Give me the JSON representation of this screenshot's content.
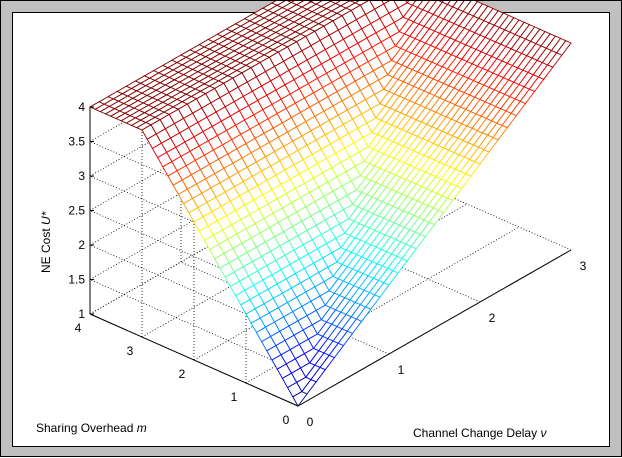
{
  "chart_data": {
    "type": "surface",
    "title": "",
    "xlabel": "Channel Change Delay",
    "xlabel_symbol": "ν",
    "ylabel": "Sharing Overhead",
    "ylabel_symbol": "m",
    "zlabel": "NE Cost",
    "zlabel_symbol": "U*",
    "xlim": [
      0,
      3
    ],
    "ylim": [
      0,
      4
    ],
    "zlim": [
      1,
      4
    ],
    "x_ticks": [
      0,
      1,
      2,
      3
    ],
    "y_ticks": [
      0,
      1,
      2,
      3,
      4
    ],
    "z_ticks": [
      1,
      1.5,
      2,
      2.5,
      3,
      3.5,
      4
    ],
    "x_tick_labels": [
      "0",
      "1",
      "2",
      "3"
    ],
    "y_tick_labels": [
      "0",
      "1",
      "2",
      "3",
      "4"
    ],
    "z_tick_labels": [
      "1",
      "1.5",
      "2",
      "2.5",
      "3",
      "3.5",
      "4"
    ],
    "grid": true,
    "colormap": "jet",
    "grid_resolution": {
      "nx": 31,
      "ny": 41
    },
    "surface_definition": "U* = min(max(1 + ν, 1 + m), 4)",
    "sample_points": [
      {
        "nu": 0,
        "m": 0,
        "cost": 1
      },
      {
        "nu": 3,
        "m": 0,
        "cost": 4
      },
      {
        "nu": 0,
        "m": 4,
        "cost": 4
      },
      {
        "nu": 3,
        "m": 4,
        "cost": 4
      },
      {
        "nu": 1,
        "m": 1,
        "cost": 2
      },
      {
        "nu": 2,
        "m": 2,
        "cost": 3
      }
    ]
  }
}
